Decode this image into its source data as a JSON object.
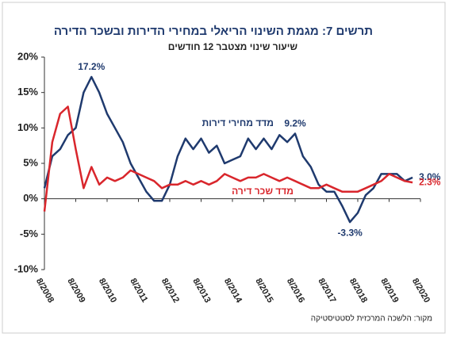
{
  "chart_data": {
    "type": "line",
    "title": "תרשים 7: מגמת השינוי הריאלי במחירי הדירות ובשכר הדירה",
    "subtitle": "שיעור שינוי מצטבר 12 חודשים",
    "source": "מקור: הלשכה המרכזית לסטטיסטיקה",
    "categories": [
      "8/2008",
      null,
      null,
      null,
      "8/2009",
      null,
      null,
      null,
      "8/2010",
      null,
      null,
      null,
      "8/2011",
      null,
      null,
      null,
      "8/2012",
      null,
      null,
      null,
      "8/2013",
      null,
      null,
      null,
      "8/2014",
      null,
      null,
      null,
      "8/2015",
      null,
      null,
      null,
      "8/2016",
      null,
      null,
      null,
      "8/2017",
      null,
      null,
      null,
      "8/2018",
      null,
      null,
      null,
      "8/2019",
      null,
      null,
      null,
      "8/2020"
    ],
    "series": [
      {
        "name": "מדד מחירי דירות",
        "color": "#1f3a6e",
        "values": [
          1.5,
          6,
          7,
          9,
          10,
          15,
          17.2,
          15,
          12,
          10,
          8,
          5,
          3,
          1,
          -0.3,
          -0.3,
          2,
          6,
          8.5,
          7,
          8.5,
          6.5,
          7.5,
          5,
          5.5,
          6,
          8.5,
          7,
          8.5,
          7,
          9,
          8,
          9.2,
          6,
          4.5,
          2,
          1,
          1,
          -1,
          -3.3,
          -2,
          0.5,
          1.5,
          3.5,
          3.5,
          3.5,
          2.5,
          3.0,
          null
        ],
        "value_labels": [
          null,
          null,
          null,
          null,
          null,
          null,
          "17.2%",
          null,
          null,
          null,
          null,
          null,
          null,
          null,
          null,
          null,
          null,
          null,
          null,
          null,
          null,
          null,
          null,
          null,
          null,
          null,
          null,
          null,
          null,
          null,
          null,
          null,
          "9.2%",
          null,
          null,
          null,
          null,
          null,
          null,
          "-3.3%",
          null,
          null,
          null,
          null,
          null,
          null,
          null,
          "3.0%",
          null
        ]
      },
      {
        "name": "מדד שכר דירה",
        "color": "#d9262c",
        "values": [
          -1.8,
          8,
          12,
          13,
          7,
          1.5,
          4.5,
          2,
          3,
          2.5,
          3,
          4,
          3.5,
          3,
          2.5,
          1.5,
          2,
          2,
          2.5,
          2,
          2.5,
          2,
          2.5,
          3.5,
          3,
          2.5,
          3,
          3,
          3.5,
          3,
          2.5,
          3,
          2.5,
          2,
          1.5,
          1.5,
          2,
          1.5,
          1,
          1,
          1,
          1.5,
          2,
          2.5,
          3.5,
          3,
          2.5,
          2.3,
          null
        ],
        "value_labels": [
          null,
          null,
          null,
          null,
          null,
          null,
          null,
          null,
          null,
          null,
          null,
          null,
          null,
          null,
          null,
          null,
          null,
          null,
          null,
          null,
          null,
          null,
          null,
          null,
          null,
          null,
          null,
          null,
          null,
          null,
          null,
          null,
          null,
          null,
          null,
          null,
          null,
          null,
          null,
          null,
          null,
          null,
          null,
          null,
          null,
          null,
          null,
          "2.3%",
          null
        ]
      }
    ],
    "ylim": [
      -10,
      20
    ],
    "yticks": [
      {
        "value": -10,
        "label": "-10%"
      },
      {
        "value": -5,
        "label": "-5%"
      },
      {
        "value": 0,
        "label": "0%"
      },
      {
        "value": 5,
        "label": "5%"
      },
      {
        "value": 10,
        "label": "10%"
      },
      {
        "value": 15,
        "label": "15%"
      },
      {
        "value": 20,
        "label": "20%"
      }
    ],
    "grid": false
  }
}
